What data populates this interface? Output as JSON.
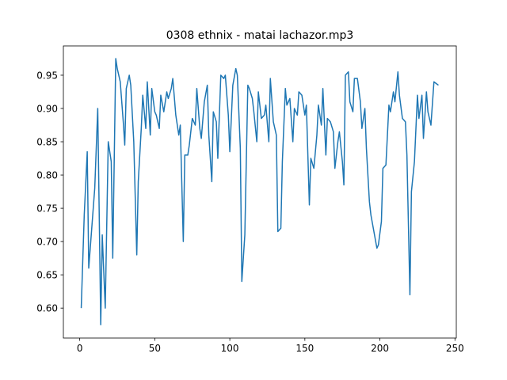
{
  "chart_data": {
    "type": "line",
    "title": "0308 ethnix - matai lachazor.mp3",
    "x": [
      1,
      3,
      5,
      6,
      7,
      10,
      12,
      14,
      15,
      17,
      19,
      21,
      22,
      24,
      25,
      27,
      29,
      30,
      31,
      33,
      34,
      36,
      38,
      39,
      41,
      42,
      44,
      45,
      47,
      48,
      50,
      51,
      53,
      54,
      56,
      58,
      59,
      61,
      62,
      64,
      66,
      67,
      69,
      70,
      72,
      73,
      75,
      77,
      78,
      80,
      81,
      83,
      85,
      86,
      88,
      89,
      91,
      92,
      94,
      96,
      97,
      99,
      100,
      102,
      104,
      105,
      107,
      108,
      110,
      112,
      113,
      115,
      116,
      118,
      119,
      121,
      123,
      124,
      126,
      127,
      129,
      131,
      132,
      134,
      135,
      137,
      138,
      140,
      142,
      143,
      145,
      146,
      148,
      150,
      151,
      153,
      154,
      156,
      158,
      159,
      161,
      162,
      164,
      165,
      167,
      169,
      170,
      172,
      173,
      175,
      176,
      177,
      179,
      180,
      182,
      183,
      185,
      187,
      188,
      190,
      191,
      193,
      194,
      196,
      198,
      199,
      201,
      202,
      204,
      206,
      207,
      209,
      210,
      212,
      213,
      215,
      217,
      218,
      220,
      221,
      223,
      225,
      226,
      228,
      229,
      231,
      232,
      234,
      236,
      239
    ],
    "series": [
      {
        "color": "#1f77b4",
        "values": [
          0.6,
          0.74,
          0.835,
          0.66,
          0.69,
          0.78,
          0.9,
          0.575,
          0.71,
          0.6,
          0.85,
          0.82,
          0.675,
          0.975,
          0.96,
          0.94,
          0.88,
          0.845,
          0.93,
          0.95,
          0.935,
          0.85,
          0.68,
          0.79,
          0.87,
          0.92,
          0.87,
          0.94,
          0.86,
          0.93,
          0.895,
          0.89,
          0.87,
          0.92,
          0.895,
          0.925,
          0.915,
          0.93,
          0.945,
          0.89,
          0.86,
          0.875,
          0.7,
          0.83,
          0.83,
          0.845,
          0.885,
          0.875,
          0.93,
          0.87,
          0.855,
          0.91,
          0.935,
          0.86,
          0.79,
          0.895,
          0.88,
          0.825,
          0.95,
          0.945,
          0.95,
          0.89,
          0.835,
          0.935,
          0.96,
          0.95,
          0.84,
          0.64,
          0.71,
          0.935,
          0.93,
          0.915,
          0.895,
          0.85,
          0.925,
          0.885,
          0.89,
          0.905,
          0.85,
          0.945,
          0.88,
          0.86,
          0.715,
          0.72,
          0.82,
          0.93,
          0.905,
          0.915,
          0.85,
          0.9,
          0.89,
          0.925,
          0.92,
          0.89,
          0.905,
          0.755,
          0.825,
          0.81,
          0.86,
          0.905,
          0.875,
          0.93,
          0.83,
          0.885,
          0.88,
          0.865,
          0.81,
          0.85,
          0.865,
          0.82,
          0.785,
          0.95,
          0.955,
          0.91,
          0.895,
          0.945,
          0.945,
          0.91,
          0.87,
          0.9,
          0.84,
          0.76,
          0.74,
          0.715,
          0.69,
          0.695,
          0.73,
          0.81,
          0.815,
          0.905,
          0.895,
          0.925,
          0.91,
          0.955,
          0.92,
          0.885,
          0.88,
          0.83,
          0.62,
          0.775,
          0.82,
          0.92,
          0.885,
          0.92,
          0.855,
          0.925,
          0.895,
          0.875,
          0.94,
          0.935
        ]
      }
    ],
    "xlim": [
      -10.9,
      250.9
    ],
    "ylim": [
      0.555,
      0.994
    ],
    "xticks": [
      0,
      50,
      100,
      150,
      200,
      250
    ],
    "yticks": [
      {
        "value": 0.6,
        "label": "0.60"
      },
      {
        "value": 0.65,
        "label": "0.65"
      },
      {
        "value": 0.7,
        "label": "0.70"
      },
      {
        "value": 0.75,
        "label": "0.75"
      },
      {
        "value": 0.8,
        "label": "0.80"
      },
      {
        "value": 0.85,
        "label": "0.85"
      },
      {
        "value": 0.9,
        "label": "0.90"
      },
      {
        "value": 0.95,
        "label": "0.95"
      }
    ],
    "grid": false
  }
}
